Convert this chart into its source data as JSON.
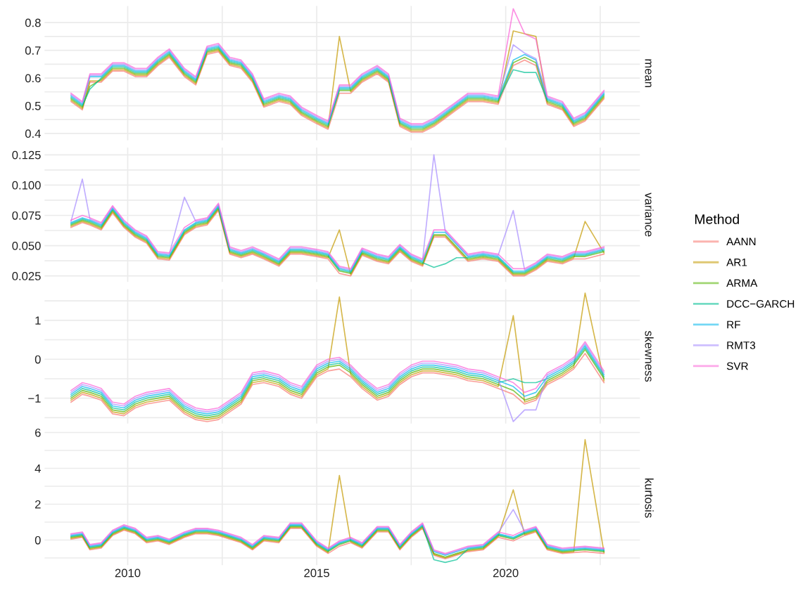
{
  "chart_data": [
    {
      "type": "line",
      "ylabel": "mean",
      "tick_labels": "y",
      "grid": true,
      "legend": "right",
      "legend_title": "Method",
      "x": [
        2008.5,
        2008.8,
        2009.0,
        2009.3,
        2009.6,
        2009.9,
        2010.2,
        2010.5,
        2010.8,
        2011.1,
        2011.5,
        2011.8,
        2012.1,
        2012.4,
        2012.7,
        2013.0,
        2013.3,
        2013.6,
        2014.0,
        2014.3,
        2014.6,
        2015.0,
        2015.3,
        2015.6,
        2015.9,
        2016.2,
        2016.6,
        2016.9,
        2017.2,
        2017.5,
        2017.8,
        2018.1,
        2018.4,
        2018.7,
        2019.0,
        2019.4,
        2019.8,
        2020.2,
        2020.5,
        2020.8,
        2021.1,
        2021.5,
        2021.8,
        2022.1,
        2022.6
      ],
      "xlim": [
        2007.8,
        2023.55
      ],
      "xticks": [
        2010,
        {
          "value": 2012.5,
          "label": null
        },
        2015,
        {
          "value": 2017.5,
          "label": null
        },
        2020,
        {
          "value": 2022.5,
          "label": null
        }
      ],
      "ylim": [
        0.375,
        0.86
      ],
      "yticks": [
        0.4,
        {
          "value": 0.45,
          "label": null
        },
        0.5,
        {
          "value": 0.55,
          "label": null
        },
        0.6,
        {
          "value": 0.65,
          "label": null
        },
        0.7,
        {
          "value": 0.75,
          "label": null
        },
        0.8
      ],
      "series": [
        {
          "name": "AANN",
          "color": "#f8766d",
          "values": [
            0.515,
            0.485,
            0.585,
            0.585,
            0.625,
            0.625,
            0.605,
            0.605,
            0.645,
            0.675,
            0.605,
            0.575,
            0.685,
            0.695,
            0.645,
            0.635,
            0.585,
            0.495,
            0.515,
            0.505,
            0.465,
            0.435,
            0.415,
            0.545,
            0.545,
            0.585,
            0.615,
            0.585,
            0.425,
            0.405,
            0.405,
            0.425,
            0.455,
            0.485,
            0.515,
            0.515,
            0.505,
            0.645,
            0.665,
            0.645,
            0.505,
            0.485,
            0.425,
            0.445,
            0.525
          ]
        },
        {
          "name": "AR1",
          "color": "#c49a00",
          "values": [
            0.52,
            0.49,
            0.59,
            0.59,
            0.63,
            0.63,
            0.61,
            0.61,
            0.65,
            0.68,
            0.61,
            0.58,
            0.69,
            0.7,
            0.65,
            0.64,
            0.59,
            0.5,
            0.52,
            0.51,
            0.47,
            0.44,
            0.42,
            0.75,
            0.55,
            0.59,
            0.62,
            0.59,
            0.43,
            0.41,
            0.41,
            0.43,
            0.46,
            0.49,
            0.52,
            0.52,
            0.51,
            0.77,
            0.76,
            0.75,
            0.51,
            0.49,
            0.43,
            0.45,
            0.53
          ]
        },
        {
          "name": "ARMA",
          "color": "#53b400",
          "values": [
            0.525,
            0.495,
            0.57,
            0.595,
            0.635,
            0.635,
            0.615,
            0.615,
            0.655,
            0.685,
            0.615,
            0.585,
            0.695,
            0.705,
            0.655,
            0.645,
            0.595,
            0.505,
            0.525,
            0.515,
            0.475,
            0.445,
            0.425,
            0.555,
            0.555,
            0.595,
            0.625,
            0.595,
            0.435,
            0.415,
            0.415,
            0.435,
            0.465,
            0.495,
            0.525,
            0.525,
            0.515,
            0.655,
            0.675,
            0.655,
            0.515,
            0.495,
            0.435,
            0.455,
            0.535
          ]
        },
        {
          "name": "DCC−GARCH",
          "color": "#00c094",
          "values": [
            0.53,
            0.5,
            0.56,
            0.6,
            0.64,
            0.64,
            0.62,
            0.62,
            0.66,
            0.69,
            0.62,
            0.59,
            0.7,
            0.71,
            0.66,
            0.65,
            0.6,
            0.51,
            0.53,
            0.52,
            0.48,
            0.45,
            0.43,
            0.56,
            0.56,
            0.6,
            0.63,
            0.6,
            0.44,
            0.42,
            0.42,
            0.44,
            0.47,
            0.5,
            0.53,
            0.53,
            0.52,
            0.63,
            0.62,
            0.62,
            0.52,
            0.5,
            0.44,
            0.46,
            0.54
          ]
        },
        {
          "name": "RF",
          "color": "#00b6eb",
          "values": [
            0.535,
            0.505,
            0.605,
            0.605,
            0.645,
            0.645,
            0.625,
            0.625,
            0.665,
            0.695,
            0.625,
            0.595,
            0.705,
            0.715,
            0.665,
            0.655,
            0.605,
            0.515,
            0.535,
            0.525,
            0.485,
            0.455,
            0.435,
            0.565,
            0.565,
            0.605,
            0.635,
            0.605,
            0.445,
            0.425,
            0.425,
            0.445,
            0.475,
            0.505,
            0.535,
            0.535,
            0.525,
            0.665,
            0.685,
            0.665,
            0.525,
            0.505,
            0.445,
            0.465,
            0.545
          ]
        },
        {
          "name": "RMT3",
          "color": "#a58aff",
          "values": [
            0.54,
            0.51,
            0.61,
            0.61,
            0.65,
            0.65,
            0.63,
            0.63,
            0.67,
            0.7,
            0.63,
            0.6,
            0.71,
            0.72,
            0.67,
            0.66,
            0.61,
            0.52,
            0.54,
            0.53,
            0.49,
            0.46,
            0.44,
            0.57,
            0.57,
            0.61,
            0.64,
            0.61,
            0.45,
            0.43,
            0.43,
            0.45,
            0.48,
            0.51,
            0.54,
            0.54,
            0.53,
            0.72,
            0.69,
            0.67,
            0.53,
            0.51,
            0.45,
            0.47,
            0.55
          ]
        },
        {
          "name": "SVR",
          "color": "#fb61d7",
          "values": [
            0.545,
            0.515,
            0.615,
            0.615,
            0.655,
            0.655,
            0.635,
            0.635,
            0.675,
            0.705,
            0.635,
            0.605,
            0.715,
            0.725,
            0.675,
            0.665,
            0.615,
            0.525,
            0.545,
            0.535,
            0.495,
            0.465,
            0.445,
            0.575,
            0.575,
            0.615,
            0.645,
            0.615,
            0.455,
            0.435,
            0.435,
            0.455,
            0.485,
            0.515,
            0.545,
            0.545,
            0.535,
            0.85,
            0.76,
            0.74,
            0.535,
            0.515,
            0.455,
            0.475,
            0.555
          ]
        }
      ]
    },
    {
      "type": "line",
      "ylabel": "variance",
      "tick_labels": "y",
      "grid": true,
      "x": [
        2008.5,
        2008.8,
        2009.0,
        2009.3,
        2009.6,
        2009.9,
        2010.2,
        2010.5,
        2010.8,
        2011.1,
        2011.5,
        2011.8,
        2012.1,
        2012.4,
        2012.7,
        2013.0,
        2013.3,
        2013.6,
        2014.0,
        2014.3,
        2014.6,
        2015.0,
        2015.3,
        2015.6,
        2015.9,
        2016.2,
        2016.6,
        2016.9,
        2017.2,
        2017.5,
        2017.8,
        2018.1,
        2018.4,
        2018.7,
        2019.0,
        2019.4,
        2019.8,
        2020.2,
        2020.5,
        2020.8,
        2021.1,
        2021.5,
        2021.8,
        2022.1,
        2022.6
      ],
      "xlim": [
        2007.8,
        2023.55
      ],
      "xticks": [
        2010,
        {
          "value": 2012.5,
          "label": null
        },
        2015,
        {
          "value": 2017.5,
          "label": null
        },
        2020,
        {
          "value": 2022.5,
          "label": null
        }
      ],
      "ylim": [
        0.02,
        0.131
      ],
      "yticks": [
        {
          "value": 0.025,
          "label": "0.025"
        },
        {
          "value": 0.0375,
          "label": null
        },
        {
          "value": 0.05,
          "label": "0.050"
        },
        {
          "value": 0.0625,
          "label": null
        },
        {
          "value": 0.075,
          "label": "0.075"
        },
        {
          "value": 0.0875,
          "label": null
        },
        {
          "value": 0.1,
          "label": "0.100"
        },
        {
          "value": 0.1125,
          "label": null
        },
        {
          "value": 0.125,
          "label": "0.125"
        }
      ],
      "series": [
        {
          "color": "#f8766d",
          "values": [
            0.065,
            0.069,
            0.067,
            0.063,
            0.077,
            0.065,
            0.057,
            0.052,
            0.039,
            0.038,
            0.059,
            0.065,
            0.067,
            0.079,
            0.043,
            0.04,
            0.043,
            0.039,
            0.033,
            0.043,
            0.043,
            0.041,
            0.039,
            0.027,
            0.025,
            0.042,
            0.037,
            0.035,
            0.045,
            0.037,
            0.033,
            0.057,
            0.057,
            0.047,
            0.037,
            0.039,
            0.037,
            0.025,
            0.025,
            0.03,
            0.037,
            0.035,
            0.039,
            0.039,
            0.043
          ]
        },
        {
          "color": "#c49a00",
          "values": [
            0.066,
            0.07,
            0.068,
            0.064,
            0.078,
            0.066,
            0.058,
            0.053,
            0.04,
            0.039,
            0.06,
            0.066,
            0.068,
            0.08,
            0.044,
            0.041,
            0.044,
            0.04,
            0.034,
            0.044,
            0.044,
            0.042,
            0.04,
            0.063,
            0.026,
            0.043,
            0.038,
            0.036,
            0.046,
            0.038,
            0.034,
            0.058,
            0.058,
            0.048,
            0.038,
            0.04,
            0.038,
            0.026,
            0.026,
            0.031,
            0.038,
            0.036,
            0.04,
            0.07,
            0.044
          ]
        },
        {
          "color": "#53b400",
          "values": [
            0.067,
            0.071,
            0.069,
            0.065,
            0.079,
            0.067,
            0.059,
            0.054,
            0.041,
            0.04,
            0.061,
            0.067,
            0.069,
            0.081,
            0.045,
            0.042,
            0.045,
            0.041,
            0.035,
            0.045,
            0.045,
            0.043,
            0.041,
            0.029,
            0.027,
            0.044,
            0.039,
            0.037,
            0.047,
            0.039,
            0.035,
            0.059,
            0.059,
            0.049,
            0.039,
            0.041,
            0.039,
            0.027,
            0.027,
            0.032,
            0.039,
            0.037,
            0.041,
            0.041,
            0.045
          ]
        },
        {
          "color": "#00c094",
          "values": [
            0.068,
            0.072,
            0.07,
            0.066,
            0.08,
            0.068,
            0.06,
            0.055,
            0.042,
            0.041,
            0.062,
            0.068,
            0.07,
            0.082,
            0.046,
            0.043,
            0.046,
            0.042,
            0.036,
            0.046,
            0.046,
            0.044,
            0.042,
            0.03,
            0.028,
            0.045,
            0.04,
            0.038,
            0.048,
            0.04,
            0.036,
            0.032,
            0.035,
            0.04,
            0.04,
            0.042,
            0.04,
            0.028,
            0.028,
            0.033,
            0.04,
            0.038,
            0.042,
            0.042,
            0.046
          ]
        },
        {
          "color": "#00b6eb",
          "values": [
            0.069,
            0.073,
            0.071,
            0.067,
            0.081,
            0.069,
            0.061,
            0.056,
            0.043,
            0.042,
            0.063,
            0.069,
            0.071,
            0.083,
            0.047,
            0.044,
            0.047,
            0.043,
            0.037,
            0.047,
            0.047,
            0.045,
            0.043,
            0.031,
            0.029,
            0.046,
            0.041,
            0.039,
            0.049,
            0.041,
            0.037,
            0.061,
            0.061,
            0.051,
            0.041,
            0.043,
            0.041,
            0.029,
            0.029,
            0.034,
            0.041,
            0.039,
            0.043,
            0.043,
            0.047
          ]
        },
        {
          "color": "#a58aff",
          "values": [
            0.07,
            0.105,
            0.072,
            0.068,
            0.082,
            0.07,
            0.062,
            0.057,
            0.044,
            0.043,
            0.09,
            0.07,
            0.072,
            0.084,
            0.048,
            0.045,
            0.048,
            0.044,
            0.038,
            0.048,
            0.048,
            0.046,
            0.044,
            0.032,
            0.03,
            0.047,
            0.042,
            0.04,
            0.05,
            0.042,
            0.038,
            0.125,
            0.062,
            0.052,
            0.042,
            0.044,
            0.042,
            0.079,
            0.03,
            0.035,
            0.042,
            0.04,
            0.044,
            0.044,
            0.048
          ]
        },
        {
          "color": "#fb61d7",
          "values": [
            0.071,
            0.075,
            0.073,
            0.069,
            0.083,
            0.071,
            0.063,
            0.058,
            0.045,
            0.044,
            0.065,
            0.071,
            0.073,
            0.085,
            0.049,
            0.046,
            0.049,
            0.045,
            0.039,
            0.049,
            0.049,
            0.047,
            0.045,
            0.033,
            0.031,
            0.048,
            0.043,
            0.041,
            0.051,
            0.043,
            0.039,
            0.063,
            0.063,
            0.053,
            0.043,
            0.045,
            0.043,
            0.031,
            0.031,
            0.036,
            0.043,
            0.041,
            0.045,
            0.045,
            0.049
          ]
        }
      ]
    },
    {
      "type": "line",
      "ylabel": "skewness",
      "tick_labels": "y",
      "grid": true,
      "x": [
        2008.5,
        2008.8,
        2009.0,
        2009.3,
        2009.6,
        2009.9,
        2010.2,
        2010.5,
        2010.8,
        2011.1,
        2011.5,
        2011.8,
        2012.1,
        2012.4,
        2012.7,
        2013.0,
        2013.3,
        2013.6,
        2014.0,
        2014.3,
        2014.6,
        2015.0,
        2015.3,
        2015.6,
        2015.9,
        2016.2,
        2016.6,
        2016.9,
        2017.2,
        2017.5,
        2017.8,
        2018.1,
        2018.4,
        2018.7,
        2019.0,
        2019.4,
        2019.8,
        2020.2,
        2020.5,
        2020.8,
        2021.1,
        2021.5,
        2021.8,
        2022.1,
        2022.6
      ],
      "xlim": [
        2007.8,
        2023.55
      ],
      "xticks": [
        2010,
        {
          "value": 2012.5,
          "label": null
        },
        2015,
        {
          "value": 2017.5,
          "label": null
        },
        2020,
        {
          "value": 2022.5,
          "label": null
        }
      ],
      "ylim": [
        -1.65,
        1.8
      ],
      "yticks": [
        {
          "value": -1.5,
          "label": null
        },
        {
          "value": -1,
          "label": "−1"
        },
        {
          "value": -0.5,
          "label": null
        },
        0,
        {
          "value": 0.5,
          "label": null
        },
        1,
        {
          "value": 1.5,
          "label": null
        }
      ],
      "series": [
        {
          "color": "#f8766d",
          "values": [
            -1.1,
            -0.9,
            -0.95,
            -1.05,
            -1.4,
            -1.45,
            -1.25,
            -1.15,
            -1.1,
            -1.05,
            -1.4,
            -1.55,
            -1.6,
            -1.55,
            -1.35,
            -1.15,
            -0.65,
            -0.6,
            -0.7,
            -0.9,
            -1.0,
            -0.45,
            -0.3,
            -0.25,
            -0.45,
            -0.75,
            -1.05,
            -0.95,
            -0.65,
            -0.45,
            -0.35,
            -0.35,
            -0.4,
            -0.45,
            -0.55,
            -0.6,
            -0.75,
            -0.9,
            -1.15,
            -1.05,
            -0.65,
            -0.45,
            -0.25,
            0.15,
            -0.6
          ]
        },
        {
          "color": "#c49a00",
          "values": [
            -1.05,
            -0.85,
            -0.9,
            -1.0,
            -1.35,
            -1.4,
            -1.2,
            -1.1,
            -1.05,
            -1.0,
            -1.35,
            -1.5,
            -1.55,
            -1.5,
            -1.3,
            -1.1,
            -0.6,
            -0.55,
            -0.65,
            -0.85,
            -0.95,
            -0.4,
            -0.25,
            1.6,
            -0.4,
            -0.7,
            -1.0,
            -0.9,
            -0.6,
            -0.4,
            -0.3,
            -0.3,
            -0.35,
            -0.4,
            -0.5,
            -0.55,
            -0.7,
            1.12,
            -1.1,
            -1.0,
            -0.6,
            -0.4,
            -0.2,
            1.7,
            -0.55
          ]
        },
        {
          "color": "#53b400",
          "values": [
            -1.0,
            -0.8,
            -0.85,
            -0.95,
            -1.3,
            -1.35,
            -1.15,
            -1.05,
            -1.0,
            -0.95,
            -1.3,
            -1.45,
            -1.5,
            -1.45,
            -1.25,
            -1.05,
            -0.55,
            -0.5,
            -0.6,
            -0.8,
            -0.9,
            -0.35,
            -0.2,
            -0.15,
            -0.35,
            -0.65,
            -0.95,
            -0.85,
            -0.55,
            -0.35,
            -0.25,
            -0.25,
            -0.3,
            -0.35,
            -0.45,
            -0.5,
            -0.65,
            -0.8,
            -1.05,
            -0.95,
            -0.55,
            -0.35,
            -0.15,
            0.25,
            -0.5
          ]
        },
        {
          "color": "#00c094",
          "values": [
            -0.95,
            -0.75,
            -0.8,
            -0.9,
            -1.25,
            -1.3,
            -1.1,
            -1.0,
            -0.95,
            -0.9,
            -1.25,
            -1.4,
            -1.45,
            -1.4,
            -1.2,
            -1.0,
            -0.5,
            -0.45,
            -0.55,
            -0.75,
            -0.85,
            -0.3,
            -0.15,
            -0.1,
            -0.3,
            -0.6,
            -0.9,
            -0.8,
            -0.5,
            -0.3,
            -0.2,
            -0.2,
            -0.25,
            -0.3,
            -0.4,
            -0.45,
            -0.6,
            -0.5,
            -0.6,
            -0.6,
            -0.5,
            -0.3,
            -0.1,
            0.3,
            -0.45
          ]
        },
        {
          "color": "#00b6eb",
          "values": [
            -0.9,
            -0.7,
            -0.75,
            -0.85,
            -1.2,
            -1.25,
            -1.05,
            -0.95,
            -0.9,
            -0.85,
            -1.2,
            -1.35,
            -1.4,
            -1.35,
            -1.15,
            -0.95,
            -0.45,
            -0.4,
            -0.5,
            -0.7,
            -0.8,
            -0.25,
            -0.1,
            -0.05,
            -0.25,
            -0.55,
            -0.85,
            -0.75,
            -0.45,
            -0.25,
            -0.15,
            -0.15,
            -0.2,
            -0.25,
            -0.35,
            -0.4,
            -0.55,
            -0.7,
            -0.95,
            -0.85,
            -0.45,
            -0.25,
            -0.05,
            0.35,
            -0.4
          ]
        },
        {
          "color": "#a58aff",
          "values": [
            -0.85,
            -0.65,
            -0.7,
            -0.8,
            -1.15,
            -1.2,
            -1.0,
            -0.9,
            -0.85,
            -0.8,
            -1.15,
            -1.3,
            -1.35,
            -1.3,
            -1.1,
            -0.9,
            -0.4,
            -0.35,
            -0.45,
            -0.65,
            -0.75,
            -0.2,
            -0.05,
            0.0,
            -0.2,
            -0.5,
            -0.8,
            -0.7,
            -0.4,
            -0.2,
            -0.1,
            -0.1,
            -0.15,
            -0.2,
            -0.3,
            -0.35,
            -0.5,
            -1.6,
            -1.3,
            -1.3,
            -0.4,
            -0.2,
            0.0,
            0.4,
            -0.35
          ]
        },
        {
          "color": "#fb61d7",
          "values": [
            -0.8,
            -0.6,
            -0.65,
            -0.75,
            -1.1,
            -1.15,
            -0.95,
            -0.85,
            -0.8,
            -0.75,
            -1.1,
            -1.25,
            -1.3,
            -1.25,
            -1.05,
            -0.85,
            -0.35,
            -0.3,
            -0.4,
            -0.6,
            -0.7,
            -0.15,
            0.0,
            0.05,
            -0.15,
            -0.45,
            -0.75,
            -0.65,
            -0.35,
            -0.15,
            -0.05,
            -0.05,
            -0.1,
            -0.15,
            -0.25,
            -0.3,
            -0.45,
            -0.6,
            -0.85,
            -0.75,
            -0.35,
            -0.15,
            0.05,
            0.45,
            -0.3
          ]
        }
      ]
    },
    {
      "type": "line",
      "ylabel": "kurtosis",
      "grid": true,
      "x": [
        2008.5,
        2008.8,
        2009.0,
        2009.3,
        2009.6,
        2009.9,
        2010.2,
        2010.5,
        2010.8,
        2011.1,
        2011.5,
        2011.8,
        2012.1,
        2012.4,
        2012.7,
        2013.0,
        2013.3,
        2013.6,
        2014.0,
        2014.3,
        2014.6,
        2015.0,
        2015.3,
        2015.6,
        2015.9,
        2016.2,
        2016.6,
        2016.9,
        2017.2,
        2017.5,
        2017.8,
        2018.1,
        2018.4,
        2018.7,
        2019.0,
        2019.4,
        2019.8,
        2020.2,
        2020.5,
        2020.8,
        2021.1,
        2021.5,
        2021.8,
        2022.1,
        2022.6
      ],
      "xlim": [
        2007.8,
        2023.55
      ],
      "xticks": [
        2010,
        {
          "value": 2012.5,
          "label": null
        },
        2015,
        {
          "value": 2017.5,
          "label": null
        },
        2020,
        {
          "value": 2022.5,
          "label": null
        }
      ],
      "ylim": [
        -1.4,
        6.1
      ],
      "yticks": [
        {
          "value": -1,
          "label": null
        },
        0,
        {
          "value": 1,
          "label": null
        },
        2,
        {
          "value": 3,
          "label": null
        },
        4,
        {
          "value": 5,
          "label": null
        },
        6
      ],
      "series": [
        {
          "color": "#f8766d",
          "values": [
            0.05,
            0.15,
            -0.55,
            -0.45,
            0.25,
            0.55,
            0.35,
            -0.15,
            -0.05,
            -0.25,
            0.15,
            0.35,
            0.35,
            0.25,
            0.05,
            -0.15,
            -0.55,
            -0.05,
            -0.15,
            0.65,
            0.65,
            -0.35,
            -0.75,
            -0.35,
            -0.15,
            -0.45,
            0.45,
            0.45,
            -0.55,
            0.15,
            0.65,
            -0.85,
            -1.05,
            -0.85,
            -0.65,
            -0.55,
            0.15,
            -0.05,
            0.25,
            0.45,
            -0.55,
            -0.75,
            -0.7,
            -0.65,
            -0.75
          ]
        },
        {
          "color": "#c49a00",
          "values": [
            0.1,
            0.2,
            -0.5,
            -0.4,
            0.3,
            0.6,
            0.4,
            -0.1,
            0.0,
            -0.2,
            0.2,
            0.4,
            0.4,
            0.3,
            0.1,
            -0.1,
            -0.5,
            0.0,
            -0.1,
            0.7,
            0.7,
            -0.3,
            -0.7,
            3.6,
            -0.1,
            -0.4,
            0.5,
            0.5,
            -0.5,
            0.2,
            0.7,
            -0.8,
            -1.0,
            -0.8,
            -0.6,
            -0.5,
            0.2,
            2.8,
            0.3,
            0.5,
            -0.5,
            -0.7,
            -0.65,
            5.6,
            -0.7
          ]
        },
        {
          "color": "#53b400",
          "values": [
            0.15,
            0.25,
            -0.45,
            -0.35,
            0.35,
            0.65,
            0.45,
            -0.05,
            0.05,
            -0.15,
            0.25,
            0.45,
            0.45,
            0.35,
            0.15,
            -0.05,
            -0.45,
            0.05,
            -0.05,
            0.75,
            0.75,
            -0.25,
            -0.65,
            -0.25,
            -0.05,
            -0.35,
            0.55,
            0.55,
            -0.45,
            0.25,
            0.75,
            -0.75,
            -0.95,
            -0.75,
            -0.55,
            -0.45,
            0.25,
            0.05,
            0.35,
            0.55,
            -0.45,
            -0.65,
            -0.6,
            -0.55,
            -0.65
          ]
        },
        {
          "color": "#00c094",
          "values": [
            0.2,
            0.3,
            -0.4,
            -0.3,
            0.4,
            0.7,
            0.5,
            0.0,
            0.1,
            -0.1,
            0.3,
            0.5,
            0.5,
            0.4,
            0.2,
            0.0,
            -0.4,
            0.1,
            0.0,
            0.8,
            0.8,
            -0.2,
            -0.6,
            -0.2,
            0.0,
            -0.3,
            0.6,
            0.6,
            -0.4,
            0.3,
            0.8,
            -1.1,
            -1.25,
            -1.1,
            -0.5,
            -0.4,
            0.3,
            0.1,
            0.4,
            0.6,
            -0.4,
            -0.6,
            -0.55,
            -0.5,
            -0.6
          ]
        },
        {
          "color": "#00b6eb",
          "values": [
            0.25,
            0.35,
            -0.35,
            -0.25,
            0.45,
            0.75,
            0.55,
            0.05,
            0.15,
            -0.05,
            0.35,
            0.55,
            0.55,
            0.45,
            0.25,
            0.05,
            -0.35,
            0.15,
            0.05,
            0.85,
            0.85,
            -0.15,
            -0.55,
            -0.15,
            0.05,
            -0.25,
            0.65,
            0.65,
            -0.35,
            0.35,
            0.85,
            -0.65,
            -0.85,
            -0.65,
            -0.45,
            -0.35,
            0.35,
            0.15,
            0.45,
            0.65,
            -0.35,
            -0.55,
            -0.5,
            -0.45,
            -0.55
          ]
        },
        {
          "color": "#a58aff",
          "values": [
            0.3,
            0.4,
            -0.3,
            -0.2,
            0.5,
            0.8,
            0.6,
            0.1,
            0.2,
            0.0,
            0.4,
            0.6,
            0.6,
            0.5,
            0.3,
            0.1,
            -0.3,
            0.2,
            0.1,
            0.9,
            0.9,
            -0.1,
            -0.5,
            -0.1,
            0.1,
            -0.2,
            0.7,
            0.7,
            -0.3,
            0.4,
            0.9,
            -0.6,
            -0.8,
            -0.6,
            -0.4,
            -0.3,
            0.4,
            1.7,
            0.5,
            0.7,
            -0.3,
            -0.5,
            -0.45,
            -0.4,
            -0.5
          ]
        },
        {
          "color": "#fb61d7",
          "values": [
            0.35,
            0.45,
            -0.25,
            -0.15,
            0.55,
            0.85,
            0.65,
            0.15,
            0.25,
            0.05,
            0.45,
            0.65,
            0.65,
            0.55,
            0.35,
            0.15,
            -0.25,
            0.25,
            0.15,
            0.95,
            0.95,
            -0.05,
            -0.45,
            -0.05,
            0.15,
            -0.15,
            0.75,
            0.75,
            -0.25,
            0.45,
            0.95,
            -0.55,
            -0.75,
            -0.55,
            -0.35,
            -0.25,
            0.45,
            0.25,
            0.55,
            0.75,
            -0.25,
            -0.45,
            -0.4,
            -0.35,
            -0.45
          ]
        }
      ]
    }
  ]
}
